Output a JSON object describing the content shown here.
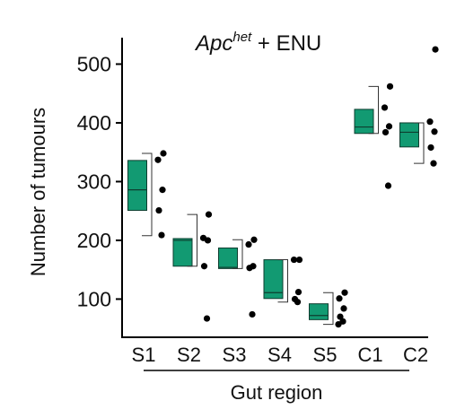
{
  "chart_data": {
    "type": "box",
    "title": {
      "italic": "Apc",
      "superscript": "het",
      "rest": " + ENU"
    },
    "ylabel": "Number of tumours",
    "xlabel": "Gut region",
    "ylim": [
      35,
      545
    ],
    "yticks": [
      100,
      200,
      300,
      400,
      500
    ],
    "categories": [
      "S1",
      "S2",
      "S3",
      "S4",
      "S5",
      "C1",
      "C2"
    ],
    "box_color": "#129a72",
    "point_color": "#000000",
    "groups": [
      {
        "name": "S1",
        "q1": 251,
        "median": 286,
        "q3": 336,
        "whisker_low": 208,
        "whisker_high": 348,
        "points": [
          348,
          337,
          286,
          251,
          209
        ]
      },
      {
        "name": "S2",
        "q1": 156,
        "median": 200,
        "q3": 203,
        "whisker_low": 156,
        "whisker_high": 244,
        "points": [
          244,
          204,
          200,
          156,
          67
        ]
      },
      {
        "name": "S3",
        "q1": 152,
        "median": 154,
        "q3": 187,
        "whisker_low": 152,
        "whisker_high": 201,
        "points": [
          201,
          193,
          156,
          153,
          74
        ]
      },
      {
        "name": "S4",
        "q1": 101,
        "median": 111,
        "q3": 167,
        "whisker_low": 95,
        "whisker_high": 167,
        "points": [
          167,
          167,
          112,
          100,
          95
        ]
      },
      {
        "name": "S5",
        "q1": 65,
        "median": 72,
        "q3": 92,
        "whisker_low": 57,
        "whisker_high": 111,
        "points": [
          111,
          101,
          84,
          70,
          62,
          57
        ]
      },
      {
        "name": "C1",
        "q1": 382,
        "median": 393,
        "q3": 423,
        "whisker_low": 382,
        "whisker_high": 462,
        "points": [
          462,
          426,
          394,
          384,
          293
        ]
      },
      {
        "name": "C2",
        "q1": 359,
        "median": 384,
        "q3": 400,
        "whisker_low": 331,
        "whisker_high": 400,
        "points": [
          525,
          402,
          385,
          358,
          331
        ]
      }
    ]
  }
}
